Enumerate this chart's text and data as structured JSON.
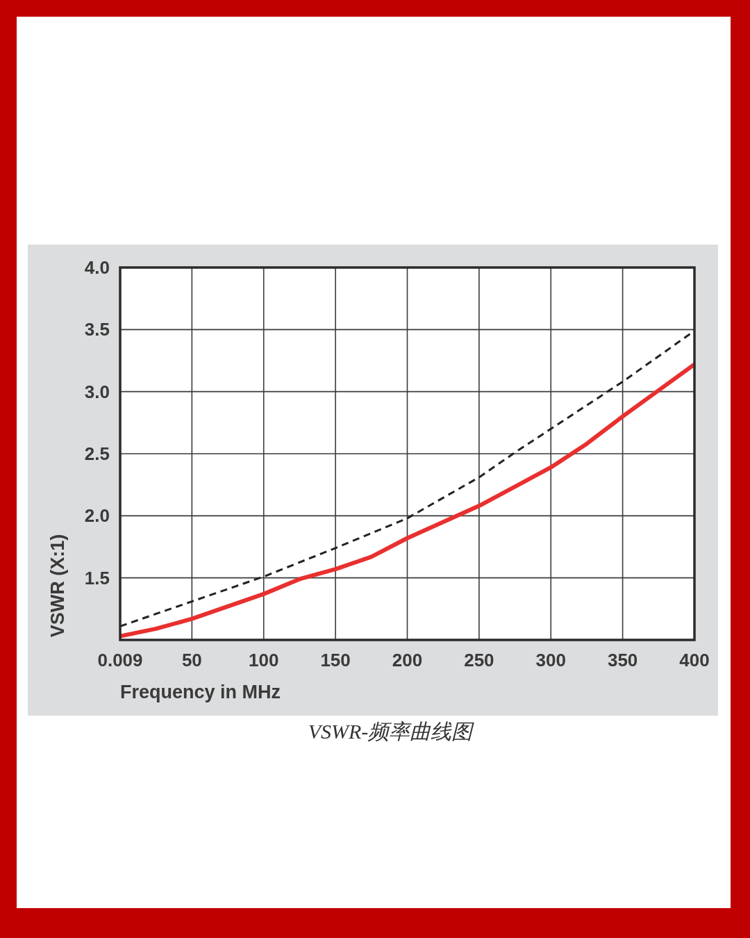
{
  "chart_data": {
    "type": "line",
    "xlabel": "Frequency in MHz",
    "ylabel": "VSWR (X:1)",
    "annotations": [
      "VSWR-频率曲线图"
    ],
    "xlim": [
      0.009,
      400
    ],
    "xticks": [
      0.009,
      50,
      100,
      150,
      200,
      250,
      300,
      350,
      400
    ],
    "ylim": [
      1,
      4
    ],
    "yticks": [
      {
        "value": 1.5,
        "label": "1.5"
      },
      {
        "value": 2,
        "label": "2.0"
      },
      {
        "value": 2.5,
        "label": "2.5"
      },
      {
        "value": 3,
        "label": "3.0"
      },
      {
        "value": 3.5,
        "label": "3.5"
      },
      {
        "value": 4,
        "label": "4.0"
      }
    ],
    "grid": true,
    "marker": "none",
    "series": [
      {
        "color": "#e8302f",
        "line_style": "solid",
        "x": [
          0.009,
          25,
          50,
          100,
          125,
          150,
          175,
          200,
          250,
          300,
          325,
          350,
          400
        ],
        "values": [
          1.03,
          1.09,
          1.17,
          1.37,
          1.49,
          1.57,
          1.67,
          1.82,
          2.08,
          2.39,
          2.58,
          2.8,
          3.22
        ]
      },
      {
        "color": "#222222",
        "line_style": "dashed",
        "x": [
          0.009,
          50,
          100,
          150,
          200,
          250,
          275,
          300,
          350,
          400
        ],
        "values": [
          1.11,
          1.31,
          1.51,
          1.74,
          1.98,
          2.31,
          2.51,
          2.7,
          3.08,
          3.49
        ]
      }
    ]
  }
}
